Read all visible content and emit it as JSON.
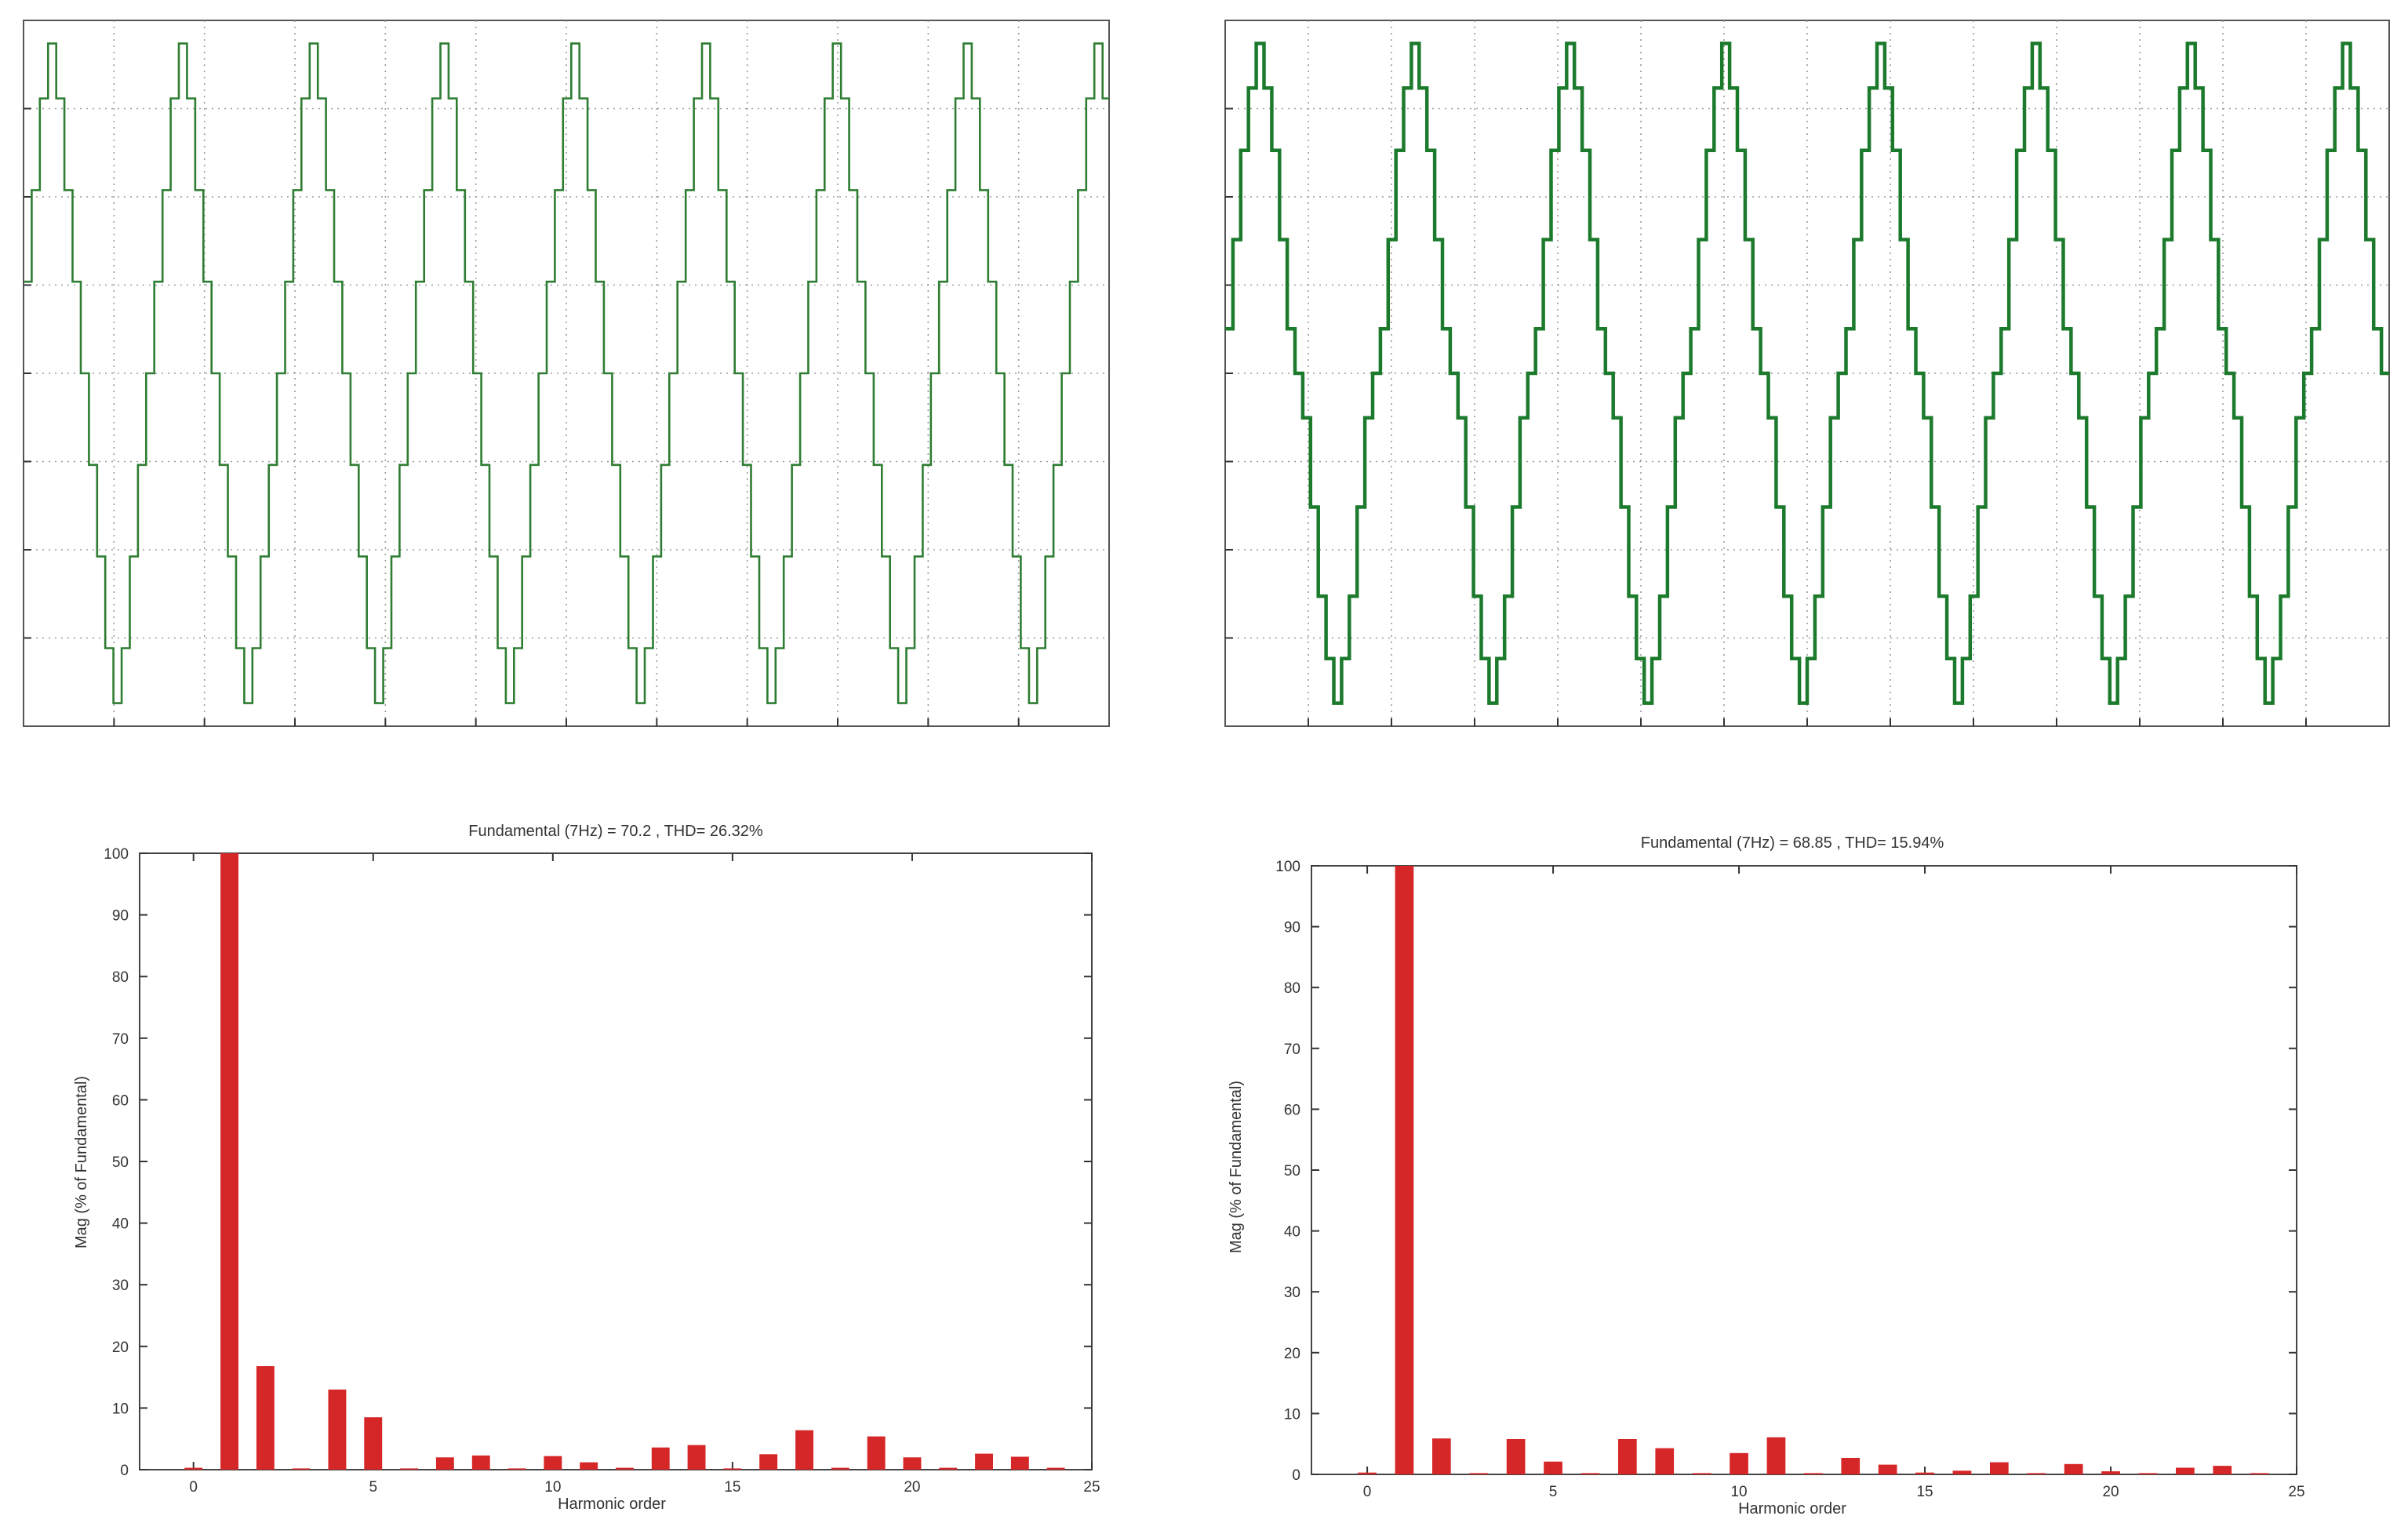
{
  "chart_data": [
    {
      "type": "line",
      "panel": "waveform-left",
      "title": "",
      "xlabel": "",
      "ylabel": "",
      "grid": true,
      "tick_labels": false,
      "cycles": 8.3,
      "color": "#2e7d32",
      "levels": [
        0,
        1,
        2,
        3,
        3.6
      ]
    },
    {
      "type": "line",
      "panel": "waveform-right",
      "title": "",
      "xlabel": "",
      "ylabel": "",
      "grid": true,
      "tick_labels": false,
      "cycles": 7.5,
      "color": "#1b7a2c",
      "levels": [
        0,
        0.5,
        1.5,
        2.5,
        3.2,
        3.7
      ]
    },
    {
      "type": "bar",
      "panel": "spectrum-left",
      "title": "Fundamental (7Hz) = 70.2 , THD= 26.32%",
      "xlabel": "Harmonic order",
      "ylabel": "Mag (% of Fundamental)",
      "xlim": [
        -1.5,
        25
      ],
      "ylim": [
        0,
        100
      ],
      "xticks": [
        0,
        5,
        10,
        15,
        20,
        25
      ],
      "yticks": [
        0,
        10,
        20,
        30,
        40,
        50,
        60,
        70,
        80,
        90,
        100
      ],
      "grid": false,
      "color": "#d62728",
      "x": [
        0,
        1,
        2,
        3,
        4,
        5,
        6,
        7,
        8,
        9,
        10,
        11,
        12,
        13,
        14,
        15,
        16,
        17,
        18,
        19,
        20,
        21,
        22,
        23,
        24
      ],
      "values": [
        0.3,
        100,
        16.8,
        0.2,
        13,
        8.5,
        0.2,
        2,
        2.3,
        0.2,
        2.2,
        1.2,
        0.3,
        3.6,
        4,
        0.2,
        2.5,
        6.4,
        0.3,
        5.4,
        2,
        0.3,
        2.6,
        2.1,
        0.3
      ]
    },
    {
      "type": "bar",
      "panel": "spectrum-right",
      "title": "Fundamental (7Hz) = 68.85 , THD= 15.94%",
      "xlabel": "Harmonic order",
      "ylabel": "Mag (% of Fundamental)",
      "xlim": [
        -1.5,
        25
      ],
      "ylim": [
        0,
        100
      ],
      "xticks": [
        0,
        5,
        10,
        15,
        20,
        25
      ],
      "yticks": [
        0,
        10,
        20,
        30,
        40,
        50,
        60,
        70,
        80,
        90,
        100
      ],
      "grid": false,
      "color": "#d62728",
      "x": [
        0,
        1,
        2,
        3,
        4,
        5,
        6,
        7,
        8,
        9,
        10,
        11,
        12,
        13,
        14,
        15,
        16,
        17,
        18,
        19,
        20,
        21,
        22,
        23,
        24
      ],
      "values": [
        0.3,
        100,
        5.9,
        0.2,
        5.8,
        2.1,
        0.2,
        5.8,
        4.3,
        0.2,
        3.5,
        6.1,
        0.2,
        2.7,
        1.6,
        0.3,
        0.6,
        2,
        0.2,
        1.7,
        0.5,
        0.2,
        1.1,
        1.4,
        0.2
      ]
    }
  ]
}
